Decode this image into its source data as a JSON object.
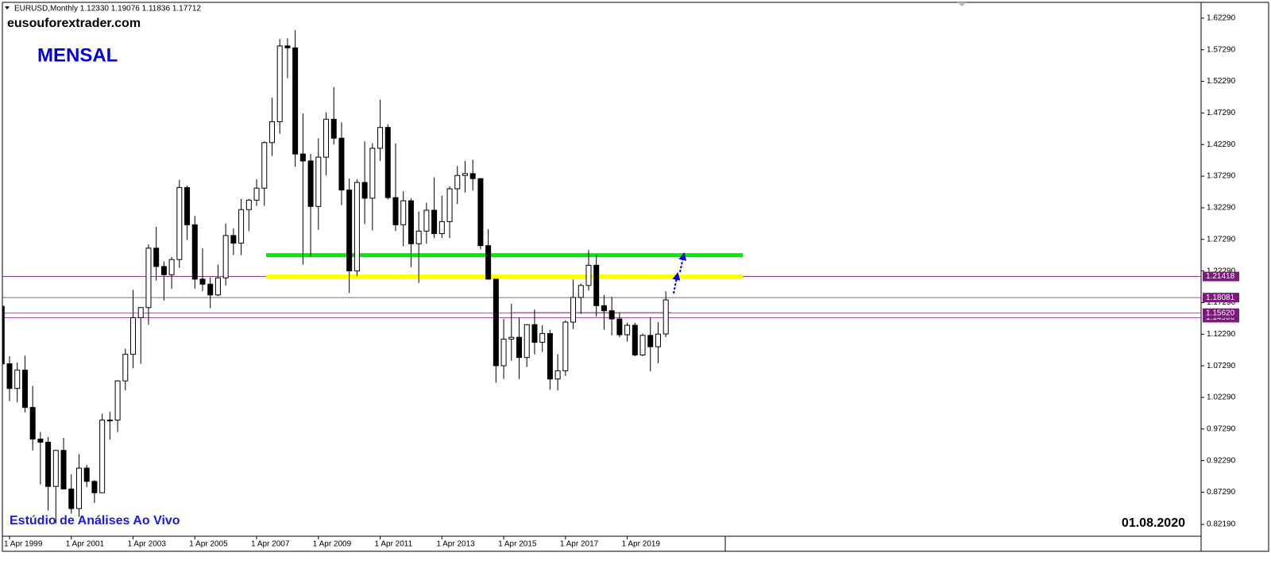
{
  "chart_data": {
    "type": "candlestick",
    "header": "EURUSD,Monthly  1.12330 1.19076 1.11836 1.17712",
    "site": "eusouforextrader.com",
    "period_label": "MENSAL",
    "footer": "Estúdio de Análises Ao Vivo",
    "date": "01.08.2020",
    "categories": [
      null,
      "1 Apr 1999",
      null,
      null,
      null,
      null,
      null,
      null,
      null,
      "1 Apr 2001",
      null,
      null,
      null,
      null,
      null,
      null,
      null,
      "1 Apr 2003",
      null,
      null,
      null,
      null,
      null,
      null,
      null,
      "1 Apr 2005",
      null,
      null,
      null,
      null,
      null,
      null,
      null,
      "1 Apr 2007",
      null,
      null,
      null,
      null,
      null,
      null,
      null,
      "1 Apr 2009",
      null,
      null,
      null,
      null,
      null,
      null,
      null,
      "1 Apr 2011",
      null,
      null,
      null,
      null,
      null,
      null,
      null,
      "1 Apr 2013",
      null,
      null,
      null,
      null,
      null,
      null,
      null,
      "1 Apr 2015",
      null,
      null,
      null,
      null,
      null,
      null,
      null,
      "1 Apr 2017",
      null,
      null,
      null,
      null,
      null,
      null,
      null,
      "1 Apr 2019",
      null,
      null,
      null,
      null,
      null
    ],
    "open": [
      1.167,
      1.076,
      1.037,
      1.066,
      1.007,
      0.957,
      0.952,
      0.882,
      0.939,
      0.878,
      0.847,
      0.911,
      0.89,
      0.872,
      0.987,
      0.987,
      1.049,
      1.091,
      1.149,
      1.165,
      1.259,
      1.23,
      1.217,
      1.241,
      1.355,
      1.296,
      1.21,
      1.202,
      1.185,
      1.212,
      1.279,
      1.267,
      1.32,
      1.335,
      1.354,
      1.426,
      1.459,
      1.579,
      1.576,
      1.408,
      1.397,
      1.325,
      1.403,
      1.463,
      1.433,
      1.351,
      1.223,
      1.363,
      1.338,
      1.417,
      1.45,
      1.339,
      1.296,
      1.334,
      1.266,
      1.286,
      1.319,
      1.282,
      1.301,
      1.353,
      1.374,
      1.377,
      1.369,
      1.263,
      1.21,
      1.073,
      1.115,
      1.118,
      1.086,
      1.138,
      1.11,
      1.124,
      1.052,
      1.065,
      1.142,
      1.181,
      1.2,
      1.232,
      1.168,
      1.16,
      1.147,
      1.122,
      1.137,
      1.09,
      1.121,
      1.103,
      1.1233
    ],
    "high": [
      1.19,
      1.088,
      1.078,
      1.089,
      1.041,
      0.968,
      0.96,
      0.94,
      0.959,
      0.901,
      0.933,
      0.916,
      0.892,
      0.997,
      1.0,
      1.05,
      1.1,
      1.193,
      1.165,
      1.265,
      1.293,
      1.238,
      1.245,
      1.367,
      1.358,
      1.31,
      1.259,
      1.213,
      1.233,
      1.298,
      1.29,
      1.337,
      1.337,
      1.368,
      1.428,
      1.497,
      1.59,
      1.591,
      1.604,
      1.472,
      1.408,
      1.433,
      1.474,
      1.514,
      1.458,
      1.369,
      1.368,
      1.428,
      1.425,
      1.494,
      1.455,
      1.425,
      1.349,
      1.338,
      1.317,
      1.331,
      1.371,
      1.342,
      1.357,
      1.389,
      1.397,
      1.399,
      1.37,
      1.289,
      1.21,
      1.147,
      1.171,
      1.149,
      1.138,
      1.162,
      1.137,
      1.13,
      1.091,
      1.145,
      1.209,
      1.203,
      1.256,
      1.248,
      1.185,
      1.182,
      1.157,
      1.141,
      1.141,
      1.124,
      1.15,
      1.142,
      1.19076
    ],
    "low": [
      1.076,
      1.017,
      1.015,
      0.999,
      0.939,
      0.885,
      0.844,
      0.823,
      0.878,
      0.839,
      0.834,
      0.881,
      0.856,
      0.872,
      0.956,
      0.968,
      1.034,
      1.069,
      1.076,
      1.138,
      1.208,
      1.176,
      1.195,
      1.228,
      1.272,
      1.195,
      1.191,
      1.164,
      1.183,
      1.2,
      1.248,
      1.248,
      1.286,
      1.326,
      1.326,
      1.405,
      1.44,
      1.528,
      1.388,
      1.233,
      1.246,
      1.288,
      1.374,
      1.423,
      1.327,
      1.188,
      1.215,
      1.297,
      1.287,
      1.397,
      1.336,
      1.286,
      1.262,
      1.229,
      1.204,
      1.266,
      1.275,
      1.275,
      1.275,
      1.329,
      1.347,
      1.35,
      1.257,
      1.21,
      1.046,
      1.052,
      1.081,
      1.052,
      1.071,
      1.091,
      1.095,
      1.035,
      1.034,
      1.057,
      1.131,
      1.155,
      1.192,
      1.151,
      1.13,
      1.121,
      1.118,
      1.111,
      1.088,
      1.088,
      1.064,
      1.077,
      1.11836
    ],
    "close": [
      1.076,
      1.037,
      1.066,
      1.007,
      0.957,
      0.952,
      0.882,
      0.939,
      0.878,
      0.847,
      0.911,
      0.89,
      0.872,
      0.987,
      0.987,
      1.049,
      1.091,
      1.149,
      1.165,
      1.259,
      1.23,
      1.217,
      1.241,
      1.355,
      1.296,
      1.21,
      1.202,
      1.185,
      1.212,
      1.279,
      1.267,
      1.32,
      1.335,
      1.354,
      1.426,
      1.459,
      1.579,
      1.576,
      1.408,
      1.397,
      1.325,
      1.403,
      1.463,
      1.433,
      1.351,
      1.223,
      1.363,
      1.338,
      1.417,
      1.45,
      1.339,
      1.296,
      1.334,
      1.266,
      1.286,
      1.319,
      1.282,
      1.301,
      1.353,
      1.374,
      1.377,
      1.369,
      1.263,
      1.21,
      1.073,
      1.115,
      1.118,
      1.086,
      1.138,
      1.11,
      1.124,
      1.052,
      1.065,
      1.142,
      1.181,
      1.2,
      1.232,
      1.168,
      1.16,
      1.147,
      1.122,
      1.137,
      1.09,
      1.121,
      1.103,
      1.123,
      1.17712
    ],
    "ylim": [
      0.8032,
      1.6479
    ],
    "yticks": [
      {
        "value": 1.6229,
        "label": "1.62290"
      },
      {
        "value": 1.5729,
        "label": "1.57290"
      },
      {
        "value": 1.5229,
        "label": "1.52290"
      },
      {
        "value": 1.4729,
        "label": "1.47290"
      },
      {
        "value": 1.4229,
        "label": "1.42290"
      },
      {
        "value": 1.3729,
        "label": "1.37290"
      },
      {
        "value": 1.3229,
        "label": "1.32290"
      },
      {
        "value": 1.2729,
        "label": "1.27290"
      },
      {
        "value": 1.2229,
        "label": "1.22290"
      },
      {
        "value": 1.1729,
        "label": "1.17290"
      },
      {
        "value": 1.1229,
        "label": "1.12290"
      },
      {
        "value": 1.0729,
        "label": "1.07290"
      },
      {
        "value": 1.0229,
        "label": "1.02290"
      },
      {
        "value": 0.9729,
        "label": "0.97290"
      },
      {
        "value": 0.9229,
        "label": "0.92290"
      },
      {
        "value": 0.8729,
        "label": "0.87290"
      },
      {
        "value": 0.8219,
        "label": "0.82190"
      }
    ],
    "grid": false,
    "zones": [
      {
        "value": 1.248,
        "color": "#00ee00"
      },
      {
        "value": 1.2141,
        "color": "#ffff00"
      }
    ],
    "price_lines": [
      {
        "value": 1.149,
        "label": "1.14900"
      },
      {
        "value": 1.1562,
        "label": "1.15620"
      },
      {
        "value": 1.18081,
        "label": "1.18081"
      },
      {
        "value": 1.21418,
        "label": "1.21418"
      }
    ],
    "price_line_color": "#7a1a7a"
  }
}
